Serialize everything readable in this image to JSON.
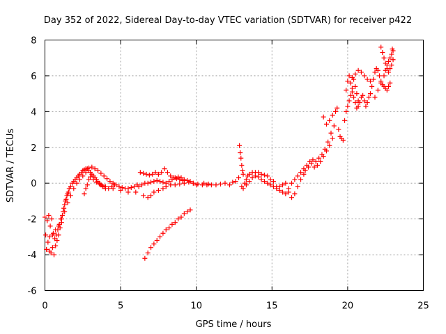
{
  "chart_data": {
    "type": "scatter",
    "title": "Day 352 of 2022, Sidereal Day-to-day VTEC variation (SDTVAR) for receiver p422",
    "xlabel": "GPS time / hours",
    "ylabel": "SDTVAR / TECUs",
    "xlim": [
      0,
      25
    ],
    "ylim": [
      -6,
      8
    ],
    "xticks": [
      0,
      5,
      10,
      15,
      20,
      25
    ],
    "yticks": [
      -6,
      -4,
      -2,
      0,
      2,
      4,
      6,
      8
    ],
    "grid": true,
    "marker": "+",
    "color": "#ff0000",
    "series": [
      {
        "name": "SDTVAR",
        "points": [
          [
            0.0,
            -1.9
          ],
          [
            0.05,
            -2.9
          ],
          [
            0.1,
            -3.7
          ],
          [
            0.15,
            -2.1
          ],
          [
            0.2,
            -3.3
          ],
          [
            0.25,
            -1.8
          ],
          [
            0.3,
            -3.8
          ],
          [
            0.35,
            -2.4
          ],
          [
            0.4,
            -3.9
          ],
          [
            0.45,
            -2.0
          ],
          [
            0.5,
            -3.6
          ],
          [
            0.55,
            -2.8
          ],
          [
            0.6,
            -4.0
          ],
          [
            0.65,
            -3.1
          ],
          [
            0.7,
            -3.5
          ],
          [
            0.75,
            -2.9
          ],
          [
            0.8,
            -3.2
          ],
          [
            0.85,
            -2.6
          ],
          [
            0.9,
            -2.9
          ],
          [
            0.95,
            -2.3
          ],
          [
            1.0,
            -2.5
          ],
          [
            1.05,
            -2.0
          ],
          [
            1.1,
            -2.2
          ],
          [
            1.15,
            -1.8
          ],
          [
            1.2,
            -1.6
          ],
          [
            1.25,
            -1.4
          ],
          [
            1.3,
            -1.2
          ],
          [
            1.35,
            -1.0
          ],
          [
            1.4,
            -0.9
          ],
          [
            1.45,
            -0.7
          ],
          [
            1.5,
            -0.6
          ],
          [
            1.55,
            -0.5
          ],
          [
            1.6,
            -0.3
          ],
          [
            1.7,
            -0.2
          ],
          [
            1.8,
            0.0
          ],
          [
            1.9,
            0.1
          ],
          [
            2.0,
            0.2
          ],
          [
            2.1,
            0.3
          ],
          [
            2.2,
            0.4
          ],
          [
            2.3,
            0.5
          ],
          [
            2.4,
            0.6
          ],
          [
            2.5,
            0.7
          ],
          [
            2.6,
            0.75
          ],
          [
            2.7,
            0.8
          ],
          [
            2.8,
            0.8
          ],
          [
            2.9,
            0.7
          ],
          [
            3.0,
            0.6
          ],
          [
            3.1,
            0.5
          ],
          [
            3.2,
            0.4
          ],
          [
            3.3,
            0.3
          ],
          [
            3.4,
            0.2
          ],
          [
            3.5,
            0.1
          ],
          [
            3.6,
            0.0
          ],
          [
            3.7,
            -0.1
          ],
          [
            3.8,
            -0.2
          ],
          [
            3.9,
            -0.2
          ],
          [
            4.0,
            -0.3
          ],
          [
            4.2,
            -0.3
          ],
          [
            4.4,
            -0.2
          ],
          [
            4.6,
            -0.1
          ],
          [
            0.3,
            -3.0
          ],
          [
            0.5,
            -2.9
          ],
          [
            0.7,
            -2.6
          ],
          [
            0.9,
            -2.4
          ],
          [
            1.1,
            -2.0
          ],
          [
            1.3,
            -1.6
          ],
          [
            1.5,
            -1.1
          ],
          [
            1.7,
            -0.7
          ],
          [
            1.9,
            -0.3
          ],
          [
            2.1,
            0.0
          ],
          [
            2.3,
            0.2
          ],
          [
            2.5,
            0.4
          ],
          [
            2.7,
            0.6
          ],
          [
            2.9,
            0.85
          ],
          [
            3.1,
            0.9
          ],
          [
            3.3,
            0.8
          ],
          [
            3.5,
            0.7
          ],
          [
            3.7,
            0.55
          ],
          [
            3.9,
            0.4
          ],
          [
            4.1,
            0.25
          ],
          [
            4.3,
            0.1
          ],
          [
            4.5,
            0.0
          ],
          [
            4.7,
            -0.1
          ],
          [
            4.9,
            -0.2
          ],
          [
            5.1,
            -0.25
          ],
          [
            5.3,
            -0.3
          ],
          [
            5.5,
            -0.3
          ],
          [
            5.7,
            -0.25
          ],
          [
            5.9,
            -0.2
          ],
          [
            6.1,
            -0.1
          ],
          [
            2.6,
            -0.6
          ],
          [
            2.7,
            -0.3
          ],
          [
            2.8,
            -0.1
          ],
          [
            2.9,
            0.2
          ],
          [
            3.0,
            0.35
          ],
          [
            3.2,
            0.2
          ],
          [
            3.4,
            0.05
          ],
          [
            3.6,
            -0.05
          ],
          [
            3.8,
            -0.15
          ],
          [
            4.0,
            -0.2
          ],
          [
            4.5,
            -0.3
          ],
          [
            5.0,
            -0.4
          ],
          [
            5.5,
            -0.5
          ],
          [
            6.0,
            -0.5
          ],
          [
            6.5,
            -0.7
          ],
          [
            6.8,
            -0.8
          ],
          [
            7.0,
            -0.7
          ],
          [
            7.2,
            -0.5
          ],
          [
            7.5,
            -0.4
          ],
          [
            7.8,
            -0.3
          ],
          [
            8.0,
            -0.2
          ],
          [
            8.3,
            -0.1
          ],
          [
            8.6,
            -0.1
          ],
          [
            8.9,
            -0.05
          ],
          [
            9.2,
            0.0
          ],
          [
            9.5,
            0.05
          ],
          [
            9.8,
            0.0
          ],
          [
            10.1,
            -0.05
          ],
          [
            10.4,
            -0.1
          ],
          [
            10.7,
            -0.1
          ],
          [
            6.2,
            -0.2
          ],
          [
            6.4,
            -0.1
          ],
          [
            6.6,
            0.0
          ],
          [
            6.8,
            0.0
          ],
          [
            7.0,
            0.05
          ],
          [
            7.2,
            0.1
          ],
          [
            7.4,
            0.15
          ],
          [
            7.6,
            0.1
          ],
          [
            7.8,
            0.05
          ],
          [
            8.0,
            0.0
          ],
          [
            8.2,
            0.1
          ],
          [
            8.4,
            0.2
          ],
          [
            8.6,
            0.3
          ],
          [
            8.8,
            0.35
          ],
          [
            9.0,
            0.3
          ],
          [
            9.2,
            0.2
          ],
          [
            9.4,
            0.15
          ],
          [
            9.6,
            0.1
          ],
          [
            9.8,
            0.0
          ],
          [
            10.0,
            -0.1
          ],
          [
            6.3,
            0.6
          ],
          [
            6.5,
            0.55
          ],
          [
            6.7,
            0.5
          ],
          [
            6.9,
            0.45
          ],
          [
            7.1,
            0.5
          ],
          [
            7.3,
            0.6
          ],
          [
            7.5,
            0.5
          ],
          [
            7.7,
            0.6
          ],
          [
            7.9,
            0.8
          ],
          [
            8.1,
            0.6
          ],
          [
            8.3,
            0.4
          ],
          [
            8.5,
            0.3
          ],
          [
            8.7,
            0.25
          ],
          [
            8.9,
            0.2
          ],
          [
            9.1,
            0.15
          ],
          [
            6.6,
            -4.2
          ],
          [
            6.8,
            -3.9
          ],
          [
            7.0,
            -3.6
          ],
          [
            7.2,
            -3.4
          ],
          [
            7.4,
            -3.2
          ],
          [
            7.6,
            -3.0
          ],
          [
            7.8,
            -2.8
          ],
          [
            8.0,
            -2.6
          ],
          [
            8.2,
            -2.5
          ],
          [
            8.4,
            -2.3
          ],
          [
            8.6,
            -2.2
          ],
          [
            8.8,
            -2.0
          ],
          [
            9.0,
            -1.9
          ],
          [
            9.2,
            -1.7
          ],
          [
            9.4,
            -1.6
          ],
          [
            9.6,
            -1.5
          ],
          [
            10.5,
            0.0
          ],
          [
            10.8,
            -0.05
          ],
          [
            11.0,
            -0.1
          ],
          [
            11.3,
            -0.1
          ],
          [
            11.6,
            -0.05
          ],
          [
            11.9,
            0.0
          ],
          [
            12.2,
            -0.1
          ],
          [
            12.4,
            0.05
          ],
          [
            12.6,
            0.1
          ],
          [
            12.8,
            0.3
          ],
          [
            12.85,
            2.1
          ],
          [
            12.9,
            1.7
          ],
          [
            12.95,
            1.4
          ],
          [
            13.0,
            1.0
          ],
          [
            13.05,
            0.7
          ],
          [
            13.1,
            0.5
          ],
          [
            13.0,
            -0.2
          ],
          [
            13.1,
            -0.3
          ],
          [
            13.2,
            0.0
          ],
          [
            13.3,
            0.2
          ],
          [
            13.4,
            0.4
          ],
          [
            13.5,
            0.5
          ],
          [
            13.7,
            0.6
          ],
          [
            13.9,
            0.6
          ],
          [
            14.1,
            0.6
          ],
          [
            14.3,
            0.5
          ],
          [
            14.5,
            0.45
          ],
          [
            14.7,
            0.4
          ],
          [
            14.9,
            0.2
          ],
          [
            15.1,
            0.1
          ],
          [
            15.3,
            -0.2
          ],
          [
            15.5,
            -0.4
          ],
          [
            15.7,
            -0.5
          ],
          [
            15.9,
            -0.6
          ],
          [
            16.1,
            -0.3
          ],
          [
            16.3,
            0.0
          ],
          [
            16.5,
            0.2
          ],
          [
            16.7,
            0.4
          ],
          [
            16.9,
            0.6
          ],
          [
            17.1,
            0.8
          ],
          [
            13.3,
            -0.1
          ],
          [
            13.5,
            0.1
          ],
          [
            13.7,
            0.3
          ],
          [
            13.9,
            0.4
          ],
          [
            14.1,
            0.35
          ],
          [
            14.3,
            0.2
          ],
          [
            14.5,
            0.1
          ],
          [
            14.7,
            0.0
          ],
          [
            14.9,
            -0.1
          ],
          [
            15.1,
            -0.2
          ],
          [
            15.3,
            -0.3
          ],
          [
            15.5,
            -0.2
          ],
          [
            15.7,
            -0.1
          ],
          [
            15.9,
            0.0
          ],
          [
            16.1,
            -0.5
          ],
          [
            16.3,
            -0.8
          ],
          [
            16.5,
            -0.6
          ],
          [
            16.7,
            -0.2
          ],
          [
            16.9,
            0.2
          ],
          [
            17.1,
            0.5
          ],
          [
            17.3,
            1.0
          ],
          [
            17.5,
            1.2
          ],
          [
            17.7,
            1.3
          ],
          [
            17.9,
            1.2
          ],
          [
            18.1,
            1.4
          ],
          [
            18.3,
            1.6
          ],
          [
            18.5,
            1.9
          ],
          [
            18.7,
            2.3
          ],
          [
            18.9,
            2.8
          ],
          [
            19.1,
            3.2
          ],
          [
            17.2,
            0.7
          ],
          [
            17.4,
            0.9
          ],
          [
            17.6,
            1.1
          ],
          [
            17.8,
            0.9
          ],
          [
            18.0,
            1.0
          ],
          [
            18.2,
            1.2
          ],
          [
            18.4,
            1.5
          ],
          [
            18.6,
            1.8
          ],
          [
            18.8,
            2.1
          ],
          [
            19.0,
            2.5
          ],
          [
            18.4,
            3.7
          ],
          [
            18.6,
            3.3
          ],
          [
            18.8,
            3.5
          ],
          [
            19.0,
            3.8
          ],
          [
            19.2,
            4.0
          ],
          [
            19.3,
            4.2
          ],
          [
            19.4,
            3.0
          ],
          [
            19.5,
            2.6
          ],
          [
            19.6,
            2.5
          ],
          [
            19.7,
            2.4
          ],
          [
            19.8,
            3.5
          ],
          [
            19.9,
            4.0
          ],
          [
            20.0,
            4.3
          ],
          [
            20.1,
            4.6
          ],
          [
            20.2,
            4.9
          ],
          [
            20.3,
            5.3
          ],
          [
            20.4,
            5.8
          ],
          [
            20.5,
            5.4
          ],
          [
            20.6,
            5.0
          ],
          [
            20.7,
            4.6
          ],
          [
            19.9,
            5.2
          ],
          [
            20.0,
            5.7
          ],
          [
            20.1,
            6.0
          ],
          [
            20.2,
            5.6
          ],
          [
            20.3,
            5.1
          ],
          [
            20.4,
            4.8
          ],
          [
            20.5,
            4.5
          ],
          [
            20.6,
            4.2
          ],
          [
            20.7,
            4.3
          ],
          [
            20.8,
            4.5
          ],
          [
            20.9,
            4.8
          ],
          [
            21.0,
            4.9
          ],
          [
            21.1,
            4.6
          ],
          [
            21.2,
            4.3
          ],
          [
            21.3,
            4.5
          ],
          [
            21.4,
            4.8
          ],
          [
            21.5,
            5.0
          ],
          [
            21.6,
            5.4
          ],
          [
            21.7,
            5.8
          ],
          [
            21.8,
            6.2
          ],
          [
            21.9,
            6.4
          ],
          [
            22.0,
            6.3
          ],
          [
            22.1,
            6.0
          ],
          [
            22.2,
            5.7
          ],
          [
            22.3,
            5.5
          ],
          [
            22.4,
            5.4
          ],
          [
            22.5,
            5.3
          ],
          [
            22.6,
            5.2
          ],
          [
            22.7,
            5.4
          ],
          [
            22.8,
            5.6
          ],
          [
            21.8,
            4.8
          ],
          [
            22.0,
            5.2
          ],
          [
            22.2,
            5.6
          ],
          [
            22.4,
            6.0
          ],
          [
            22.5,
            6.3
          ],
          [
            22.6,
            6.6
          ],
          [
            22.7,
            6.8
          ],
          [
            22.8,
            7.0
          ],
          [
            22.9,
            7.2
          ],
          [
            22.95,
            7.5
          ],
          [
            22.2,
            7.6
          ],
          [
            22.3,
            7.3
          ],
          [
            22.4,
            7.0
          ],
          [
            22.5,
            6.7
          ],
          [
            22.6,
            6.4
          ],
          [
            22.7,
            6.2
          ],
          [
            22.8,
            6.4
          ],
          [
            22.9,
            6.6
          ],
          [
            23.0,
            6.9
          ],
          [
            23.0,
            7.4
          ],
          [
            20.3,
            5.9
          ],
          [
            20.5,
            6.1
          ],
          [
            20.7,
            6.3
          ],
          [
            20.9,
            6.2
          ],
          [
            21.1,
            6.0
          ],
          [
            21.3,
            5.8
          ],
          [
            21.5,
            5.7
          ]
        ]
      }
    ]
  }
}
